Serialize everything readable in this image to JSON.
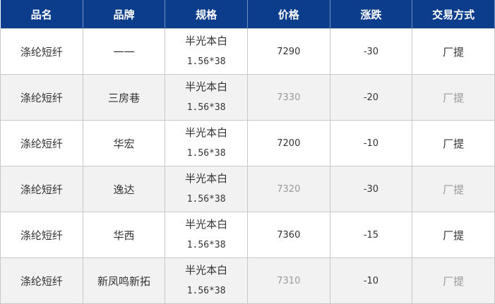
{
  "header": [
    "品名",
    "品牌",
    "规格",
    "价格",
    "涨跌",
    "交易方式"
  ],
  "rows": [
    {
      "name": "涤纶短纤",
      "brand": "一一",
      "spec1": "半光本白",
      "spec2": "1.56*38",
      "price": "7290",
      "change": "-30",
      "trade": "厂提"
    },
    {
      "name": "涤纶短纤",
      "brand": "三房巷",
      "spec1": "半光本白",
      "spec2": "1.56*38",
      "price": "7330",
      "change": "-20",
      "trade": "厂提"
    },
    {
      "name": "涤纶短纤",
      "brand": "华宏",
      "spec1": "半光本白",
      "spec2": "1.56*38",
      "price": "7200",
      "change": "-10",
      "trade": "厂提"
    },
    {
      "name": "涤纶短纤",
      "brand": "逸达",
      "spec1": "半光本白",
      "spec2": "1.56*38",
      "price": "7320",
      "change": "-30",
      "trade": "厂提"
    },
    {
      "name": "涤纶短纤",
      "brand": "华西",
      "spec1": "半光本白",
      "spec2": "1.56*38",
      "price": "7360",
      "change": "-15",
      "trade": "厂提"
    },
    {
      "name": "涤纶短纤",
      "brand": "新凤鸣新拓",
      "spec1": "半光本白",
      "spec2": "1.56*38",
      "price": "7310",
      "change": "-10",
      "trade": "厂提"
    }
  ],
  "colors": {
    "header_bg": "#0b3d8c",
    "alt_row": "#f2f2f2"
  }
}
